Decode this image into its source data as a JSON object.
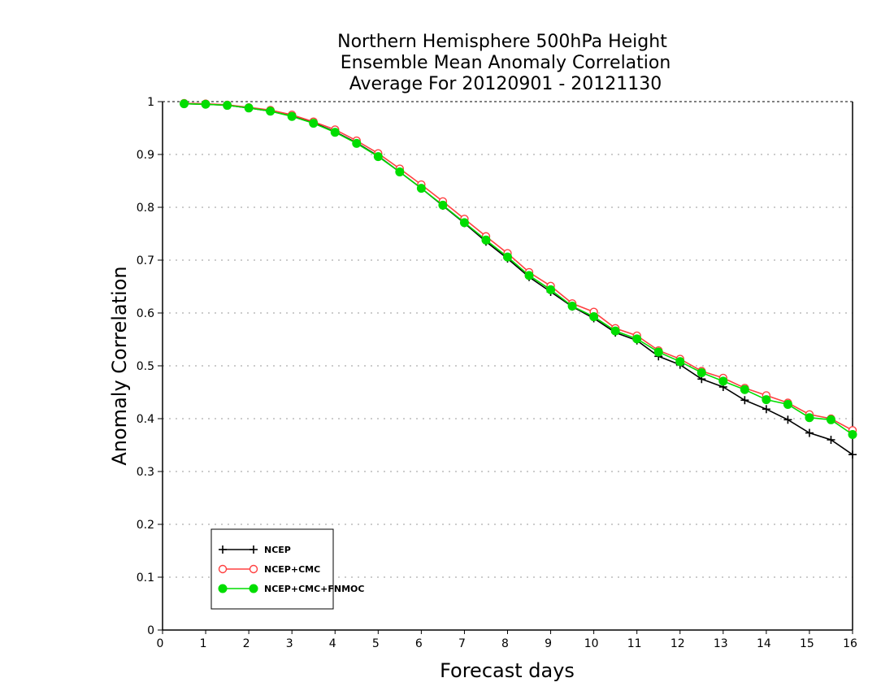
{
  "chart_data": {
    "type": "line",
    "title": [
      "Northern Hemisphere 500hPa Height",
      "Ensemble Mean Anomaly Correlation",
      "Average For 20120901 - 20121130"
    ],
    "xlabel": "Forecast days",
    "ylabel": "Anomaly Correlation",
    "xlim": [
      0,
      16
    ],
    "ylim": [
      0,
      1
    ],
    "x_ticks": [
      "0",
      "1",
      "2",
      "3",
      "4",
      "5",
      "6",
      "7",
      "8",
      "9",
      "10",
      "11",
      "12",
      "13",
      "14",
      "15",
      "16"
    ],
    "y_ticks": [
      "0",
      "0.1",
      "0.2",
      "0.3",
      "0.4",
      "0.5",
      "0.6",
      "0.7",
      "0.8",
      "0.9",
      "1"
    ],
    "grid": "horizontal dotted",
    "legend_placement": "bottom-left",
    "x": [
      0.5,
      1.0,
      1.5,
      2.0,
      2.5,
      3.0,
      3.5,
      4.0,
      4.5,
      5.0,
      5.5,
      6.0,
      6.5,
      7.0,
      7.5,
      8.0,
      8.5,
      9.0,
      9.5,
      10.0,
      10.5,
      11.0,
      11.5,
      12.0,
      12.5,
      13.0,
      13.5,
      14.0,
      14.5,
      15.0,
      15.5,
      16.0
    ],
    "series": [
      {
        "name": "NCEP",
        "color": "#000000",
        "marker": "plus",
        "values": [
          0.996,
          0.995,
          0.993,
          0.988,
          0.982,
          0.973,
          0.96,
          0.943,
          0.922,
          0.897,
          0.867,
          0.836,
          0.803,
          0.77,
          0.735,
          0.703,
          0.668,
          0.64,
          0.612,
          0.59,
          0.563,
          0.548,
          0.518,
          0.502,
          0.475,
          0.46,
          0.435,
          0.418,
          0.398,
          0.373,
          0.36,
          0.332
        ]
      },
      {
        "name": "NCEP+CMC",
        "color": "#ff4040",
        "marker": "open-circle",
        "values": [
          0.997,
          0.996,
          0.994,
          0.989,
          0.984,
          0.975,
          0.962,
          0.947,
          0.926,
          0.902,
          0.873,
          0.843,
          0.811,
          0.778,
          0.745,
          0.713,
          0.677,
          0.651,
          0.618,
          0.602,
          0.571,
          0.557,
          0.529,
          0.513,
          0.49,
          0.477,
          0.458,
          0.444,
          0.43,
          0.408,
          0.4,
          0.378
        ]
      },
      {
        "name": "NCEP+CMC+FNMOC",
        "color": "#00dd00",
        "marker": "filled-circle",
        "values": [
          0.996,
          0.995,
          0.993,
          0.988,
          0.982,
          0.972,
          0.959,
          0.942,
          0.921,
          0.896,
          0.867,
          0.836,
          0.804,
          0.771,
          0.738,
          0.706,
          0.671,
          0.644,
          0.613,
          0.593,
          0.566,
          0.551,
          0.526,
          0.508,
          0.487,
          0.471,
          0.455,
          0.436,
          0.427,
          0.402,
          0.398,
          0.37
        ]
      }
    ]
  }
}
